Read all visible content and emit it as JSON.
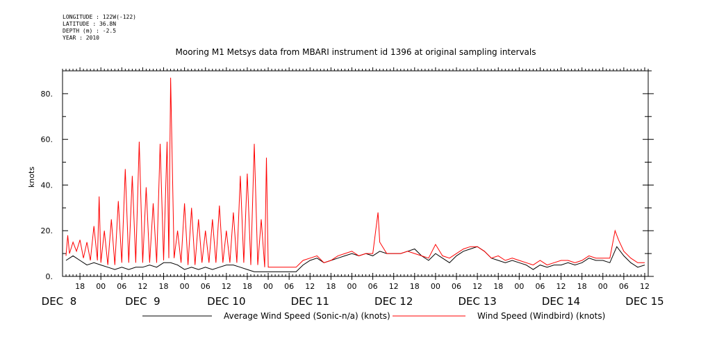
{
  "header": {
    "longitude": "LONGITUDE : 122W(-122)",
    "latitude": "LATITUDE : 36.8N",
    "depth": "DEPTH (m) : -2.5",
    "year": "YEAR : 2010"
  },
  "colors": {
    "avg": "#000000",
    "windbird": "#ff0000",
    "axis": "#000000"
  },
  "chart_data": {
    "type": "line",
    "title": "Mooring M1 Metsys data from MBARI instrument id 1396 at original sampling intervals",
    "ylabel": "knots",
    "xlabel": "",
    "ylim": [
      0,
      90
    ],
    "xlim": [
      "2010-12-08 13:00",
      "2010-12-15 13:00"
    ],
    "y_ticks": [
      0,
      20,
      40,
      60,
      80
    ],
    "y_tick_labels": [
      "0.",
      "20.",
      "40.",
      "60.",
      "80."
    ],
    "x_ticks": [
      {
        "t": "2010-12-08 18:00",
        "label": "18"
      },
      {
        "t": "2010-12-09 00:00",
        "label": "00"
      },
      {
        "t": "2010-12-09 06:00",
        "label": "06"
      },
      {
        "t": "2010-12-09 12:00",
        "label": "12"
      },
      {
        "t": "2010-12-09 18:00",
        "label": "18"
      },
      {
        "t": "2010-12-10 00:00",
        "label": "00"
      },
      {
        "t": "2010-12-10 06:00",
        "label": "06"
      },
      {
        "t": "2010-12-10 12:00",
        "label": "12"
      },
      {
        "t": "2010-12-10 18:00",
        "label": "18"
      },
      {
        "t": "2010-12-11 00:00",
        "label": "00"
      },
      {
        "t": "2010-12-11 06:00",
        "label": "06"
      },
      {
        "t": "2010-12-11 12:00",
        "label": "12"
      },
      {
        "t": "2010-12-11 18:00",
        "label": "18"
      },
      {
        "t": "2010-12-12 00:00",
        "label": "00"
      },
      {
        "t": "2010-12-12 06:00",
        "label": "06"
      },
      {
        "t": "2010-12-12 12:00",
        "label": "12"
      },
      {
        "t": "2010-12-12 18:00",
        "label": "18"
      },
      {
        "t": "2010-12-13 00:00",
        "label": "00"
      },
      {
        "t": "2010-12-13 06:00",
        "label": "06"
      },
      {
        "t": "2010-12-13 12:00",
        "label": "12"
      },
      {
        "t": "2010-12-13 18:00",
        "label": "18"
      },
      {
        "t": "2010-12-14 00:00",
        "label": "00"
      },
      {
        "t": "2010-12-14 06:00",
        "label": "06"
      },
      {
        "t": "2010-12-14 12:00",
        "label": "12"
      },
      {
        "t": "2010-12-14 18:00",
        "label": "18"
      },
      {
        "t": "2010-12-15 00:00",
        "label": "00"
      },
      {
        "t": "2010-12-15 06:00",
        "label": "06"
      },
      {
        "t": "2010-12-15 12:00",
        "label": "12"
      }
    ],
    "day_labels": [
      {
        "t": "2010-12-08 12:00",
        "label": "DEC  8"
      },
      {
        "t": "2010-12-09 12:00",
        "label": "DEC  9"
      },
      {
        "t": "2010-12-10 12:00",
        "label": "DEC 10"
      },
      {
        "t": "2010-12-11 12:00",
        "label": "DEC 11"
      },
      {
        "t": "2010-12-12 12:00",
        "label": "DEC 12"
      },
      {
        "t": "2010-12-13 12:00",
        "label": "DEC 13"
      },
      {
        "t": "2010-12-14 12:00",
        "label": "DEC 14"
      },
      {
        "t": "2010-12-15 12:00",
        "label": "DEC 15"
      }
    ],
    "series": [
      {
        "name": "Average Wind Speed (Sonic-n/a) (knots)",
        "color": "#000000",
        "points": [
          [
            "2010-12-08 14:00",
            7
          ],
          [
            "2010-12-08 16:00",
            9
          ],
          [
            "2010-12-08 18:00",
            7
          ],
          [
            "2010-12-08 20:00",
            5
          ],
          [
            "2010-12-08 22:00",
            6
          ],
          [
            "2010-12-09 00:00",
            5
          ],
          [
            "2010-12-09 02:00",
            4
          ],
          [
            "2010-12-09 04:00",
            3
          ],
          [
            "2010-12-09 06:00",
            4
          ],
          [
            "2010-12-09 08:00",
            3
          ],
          [
            "2010-12-09 10:00",
            4
          ],
          [
            "2010-12-09 12:00",
            4
          ],
          [
            "2010-12-09 14:00",
            5
          ],
          [
            "2010-12-09 16:00",
            4
          ],
          [
            "2010-12-09 18:00",
            6
          ],
          [
            "2010-12-09 20:00",
            6
          ],
          [
            "2010-12-09 22:00",
            5
          ],
          [
            "2010-12-10 00:00",
            3
          ],
          [
            "2010-12-10 02:00",
            4
          ],
          [
            "2010-12-10 04:00",
            3
          ],
          [
            "2010-12-10 06:00",
            4
          ],
          [
            "2010-12-10 08:00",
            3
          ],
          [
            "2010-12-10 10:00",
            4
          ],
          [
            "2010-12-10 12:00",
            5
          ],
          [
            "2010-12-10 14:00",
            5
          ],
          [
            "2010-12-10 16:00",
            4
          ],
          [
            "2010-12-10 18:00",
            3
          ],
          [
            "2010-12-10 20:00",
            2
          ],
          [
            "2010-12-10 22:00",
            2
          ],
          [
            "2010-12-11 00:00",
            2
          ],
          [
            "2010-12-11 04:00",
            2
          ],
          [
            "2010-12-11 08:00",
            2
          ],
          [
            "2010-12-11 10:00",
            5
          ],
          [
            "2010-12-11 12:00",
            7
          ],
          [
            "2010-12-11 14:00",
            8
          ],
          [
            "2010-12-11 16:00",
            6
          ],
          [
            "2010-12-11 18:00",
            7
          ],
          [
            "2010-12-11 20:00",
            8
          ],
          [
            "2010-12-11 22:00",
            9
          ],
          [
            "2010-12-12 00:00",
            10
          ],
          [
            "2010-12-12 02:00",
            9
          ],
          [
            "2010-12-12 04:00",
            10
          ],
          [
            "2010-12-12 06:00",
            9
          ],
          [
            "2010-12-12 08:00",
            11
          ],
          [
            "2010-12-12 10:00",
            10
          ],
          [
            "2010-12-12 12:00",
            10
          ],
          [
            "2010-12-12 14:00",
            10
          ],
          [
            "2010-12-12 16:00",
            11
          ],
          [
            "2010-12-12 18:00",
            12
          ],
          [
            "2010-12-12 20:00",
            9
          ],
          [
            "2010-12-12 22:00",
            7
          ],
          [
            "2010-12-13 00:00",
            10
          ],
          [
            "2010-12-13 02:00",
            8
          ],
          [
            "2010-12-13 04:00",
            6
          ],
          [
            "2010-12-13 06:00",
            9
          ],
          [
            "2010-12-13 08:00",
            11
          ],
          [
            "2010-12-13 10:00",
            12
          ],
          [
            "2010-12-13 12:00",
            13
          ],
          [
            "2010-12-13 14:00",
            11
          ],
          [
            "2010-12-13 16:00",
            8
          ],
          [
            "2010-12-13 18:00",
            7
          ],
          [
            "2010-12-13 20:00",
            6
          ],
          [
            "2010-12-13 22:00",
            7
          ],
          [
            "2010-12-14 00:00",
            6
          ],
          [
            "2010-12-14 02:00",
            5
          ],
          [
            "2010-12-14 04:00",
            3
          ],
          [
            "2010-12-14 06:00",
            5
          ],
          [
            "2010-12-14 08:00",
            4
          ],
          [
            "2010-12-14 10:00",
            5
          ],
          [
            "2010-12-14 12:00",
            5
          ],
          [
            "2010-12-14 14:00",
            6
          ],
          [
            "2010-12-14 16:00",
            5
          ],
          [
            "2010-12-14 18:00",
            6
          ],
          [
            "2010-12-14 20:00",
            8
          ],
          [
            "2010-12-14 22:00",
            7
          ],
          [
            "2010-12-15 00:00",
            7
          ],
          [
            "2010-12-15 02:00",
            6
          ],
          [
            "2010-12-15 04:00",
            13
          ],
          [
            "2010-12-15 06:00",
            9
          ],
          [
            "2010-12-15 08:00",
            6
          ],
          [
            "2010-12-15 10:00",
            4
          ],
          [
            "2010-12-15 12:00",
            5
          ]
        ]
      },
      {
        "name": "Wind Speed (Windbird) (knots)",
        "color": "#ff0000",
        "points": [
          [
            "2010-12-08 14:00",
            9
          ],
          [
            "2010-12-08 14:30",
            18
          ],
          [
            "2010-12-08 15:00",
            10
          ],
          [
            "2010-12-08 16:00",
            15
          ],
          [
            "2010-12-08 17:00",
            11
          ],
          [
            "2010-12-08 18:00",
            16
          ],
          [
            "2010-12-08 19:00",
            8
          ],
          [
            "2010-12-08 20:00",
            15
          ],
          [
            "2010-12-08 21:00",
            7
          ],
          [
            "2010-12-08 22:00",
            22
          ],
          [
            "2010-12-08 23:00",
            7
          ],
          [
            "2010-12-08 23:30",
            35
          ],
          [
            "2010-12-09 00:00",
            6
          ],
          [
            "2010-12-09 01:00",
            20
          ],
          [
            "2010-12-09 02:00",
            5
          ],
          [
            "2010-12-09 03:00",
            25
          ],
          [
            "2010-12-09 04:00",
            5
          ],
          [
            "2010-12-09 05:00",
            33
          ],
          [
            "2010-12-09 06:00",
            6
          ],
          [
            "2010-12-09 07:00",
            47
          ],
          [
            "2010-12-09 08:00",
            6
          ],
          [
            "2010-12-09 09:00",
            44
          ],
          [
            "2010-12-09 10:00",
            6
          ],
          [
            "2010-12-09 11:00",
            59
          ],
          [
            "2010-12-09 12:00",
            6
          ],
          [
            "2010-12-09 13:00",
            39
          ],
          [
            "2010-12-09 14:00",
            6
          ],
          [
            "2010-12-09 15:00",
            32
          ],
          [
            "2010-12-09 16:00",
            6
          ],
          [
            "2010-12-09 17:00",
            58
          ],
          [
            "2010-12-09 18:00",
            7
          ],
          [
            "2010-12-09 19:00",
            59
          ],
          [
            "2010-12-09 19:30",
            8
          ],
          [
            "2010-12-09 20:00",
            87
          ],
          [
            "2010-12-09 21:00",
            8
          ],
          [
            "2010-12-09 22:00",
            20
          ],
          [
            "2010-12-09 23:00",
            6
          ],
          [
            "2010-12-10 00:00",
            32
          ],
          [
            "2010-12-10 01:00",
            5
          ],
          [
            "2010-12-10 02:00",
            30
          ],
          [
            "2010-12-10 03:00",
            5
          ],
          [
            "2010-12-10 04:00",
            25
          ],
          [
            "2010-12-10 05:00",
            6
          ],
          [
            "2010-12-10 06:00",
            20
          ],
          [
            "2010-12-10 07:00",
            6
          ],
          [
            "2010-12-10 08:00",
            25
          ],
          [
            "2010-12-10 09:00",
            6
          ],
          [
            "2010-12-10 10:00",
            31
          ],
          [
            "2010-12-10 11:00",
            6
          ],
          [
            "2010-12-10 12:00",
            20
          ],
          [
            "2010-12-10 13:00",
            6
          ],
          [
            "2010-12-10 14:00",
            28
          ],
          [
            "2010-12-10 15:00",
            6
          ],
          [
            "2010-12-10 16:00",
            44
          ],
          [
            "2010-12-10 17:00",
            6
          ],
          [
            "2010-12-10 18:00",
            45
          ],
          [
            "2010-12-10 19:00",
            5
          ],
          [
            "2010-12-10 20:00",
            58
          ],
          [
            "2010-12-10 21:00",
            5
          ],
          [
            "2010-12-10 22:00",
            25
          ],
          [
            "2010-12-10 23:00",
            4
          ],
          [
            "2010-12-10 23:30",
            52
          ],
          [
            "2010-12-11 00:00",
            4
          ],
          [
            "2010-12-11 04:00",
            4
          ],
          [
            "2010-12-11 08:00",
            4
          ],
          [
            "2010-12-11 10:00",
            7
          ],
          [
            "2010-12-11 12:00",
            8
          ],
          [
            "2010-12-11 14:00",
            9
          ],
          [
            "2010-12-11 16:00",
            6
          ],
          [
            "2010-12-11 18:00",
            7
          ],
          [
            "2010-12-11 20:00",
            9
          ],
          [
            "2010-12-11 22:00",
            10
          ],
          [
            "2010-12-12 00:00",
            11
          ],
          [
            "2010-12-12 02:00",
            9
          ],
          [
            "2010-12-12 04:00",
            10
          ],
          [
            "2010-12-12 06:00",
            10
          ],
          [
            "2010-12-12 07:30",
            28
          ],
          [
            "2010-12-12 08:00",
            15
          ],
          [
            "2010-12-12 10:00",
            10
          ],
          [
            "2010-12-12 12:00",
            10
          ],
          [
            "2010-12-12 14:00",
            10
          ],
          [
            "2010-12-12 16:00",
            11
          ],
          [
            "2010-12-12 18:00",
            10
          ],
          [
            "2010-12-12 20:00",
            9
          ],
          [
            "2010-12-12 22:00",
            8
          ],
          [
            "2010-12-13 00:00",
            14
          ],
          [
            "2010-12-13 02:00",
            9
          ],
          [
            "2010-12-13 04:00",
            8
          ],
          [
            "2010-12-13 06:00",
            10
          ],
          [
            "2010-12-13 08:00",
            12
          ],
          [
            "2010-12-13 10:00",
            13
          ],
          [
            "2010-12-13 12:00",
            13
          ],
          [
            "2010-12-13 14:00",
            11
          ],
          [
            "2010-12-13 16:00",
            8
          ],
          [
            "2010-12-13 18:00",
            9
          ],
          [
            "2010-12-13 20:00",
            7
          ],
          [
            "2010-12-13 22:00",
            8
          ],
          [
            "2010-12-14 00:00",
            7
          ],
          [
            "2010-12-14 02:00",
            6
          ],
          [
            "2010-12-14 04:00",
            5
          ],
          [
            "2010-12-14 06:00",
            7
          ],
          [
            "2010-12-14 08:00",
            5
          ],
          [
            "2010-12-14 10:00",
            6
          ],
          [
            "2010-12-14 12:00",
            7
          ],
          [
            "2010-12-14 14:00",
            7
          ],
          [
            "2010-12-14 16:00",
            6
          ],
          [
            "2010-12-14 18:00",
            7
          ],
          [
            "2010-12-14 20:00",
            9
          ],
          [
            "2010-12-14 22:00",
            8
          ],
          [
            "2010-12-15 00:00",
            8
          ],
          [
            "2010-12-15 02:00",
            8
          ],
          [
            "2010-12-15 03:30",
            20
          ],
          [
            "2010-12-15 04:30",
            16
          ],
          [
            "2010-12-15 06:00",
            11
          ],
          [
            "2010-12-15 08:00",
            8
          ],
          [
            "2010-12-15 10:00",
            6
          ],
          [
            "2010-12-15 12:00",
            6
          ]
        ]
      }
    ]
  }
}
